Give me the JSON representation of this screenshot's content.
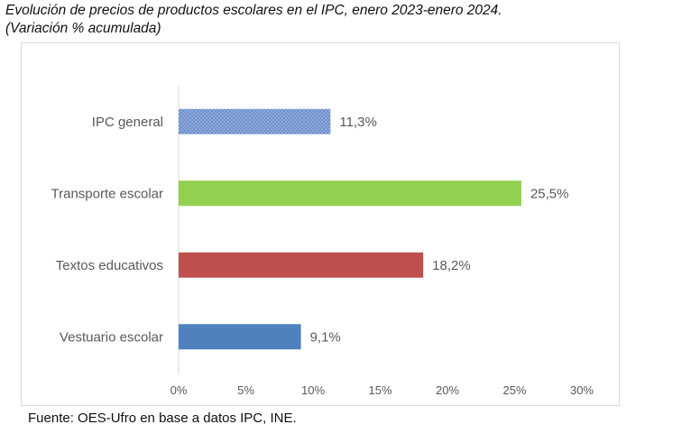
{
  "chart_data": {
    "type": "bar",
    "orientation": "horizontal",
    "title": "Evolución de precios de productos escolares en el IPC, enero 2023-enero 2024.",
    "subtitle": "(Variación % acumulada)",
    "categories": [
      "IPC general",
      "Transporte escolar",
      "Textos educativos",
      "Vestuario escolar"
    ],
    "values": [
      11.3,
      25.5,
      18.2,
      9.1
    ],
    "data_labels": [
      "11,3%",
      "25,5%",
      "18,2%",
      "9,1%"
    ],
    "colors": [
      "#8eaadb",
      "#92d050",
      "#c0504d",
      "#4f81bd"
    ],
    "patterns": [
      "dotted",
      "solid",
      "solid",
      "solid"
    ],
    "xlim": [
      0,
      30
    ],
    "xticks": [
      0,
      5,
      10,
      15,
      20,
      25,
      30
    ],
    "xtick_labels": [
      "0%",
      "5%",
      "10%",
      "15%",
      "20%",
      "25%",
      "30%"
    ],
    "grid": false,
    "legend": "none",
    "source": "Fuente: OES-Ufro en base a datos IPC, INE."
  }
}
